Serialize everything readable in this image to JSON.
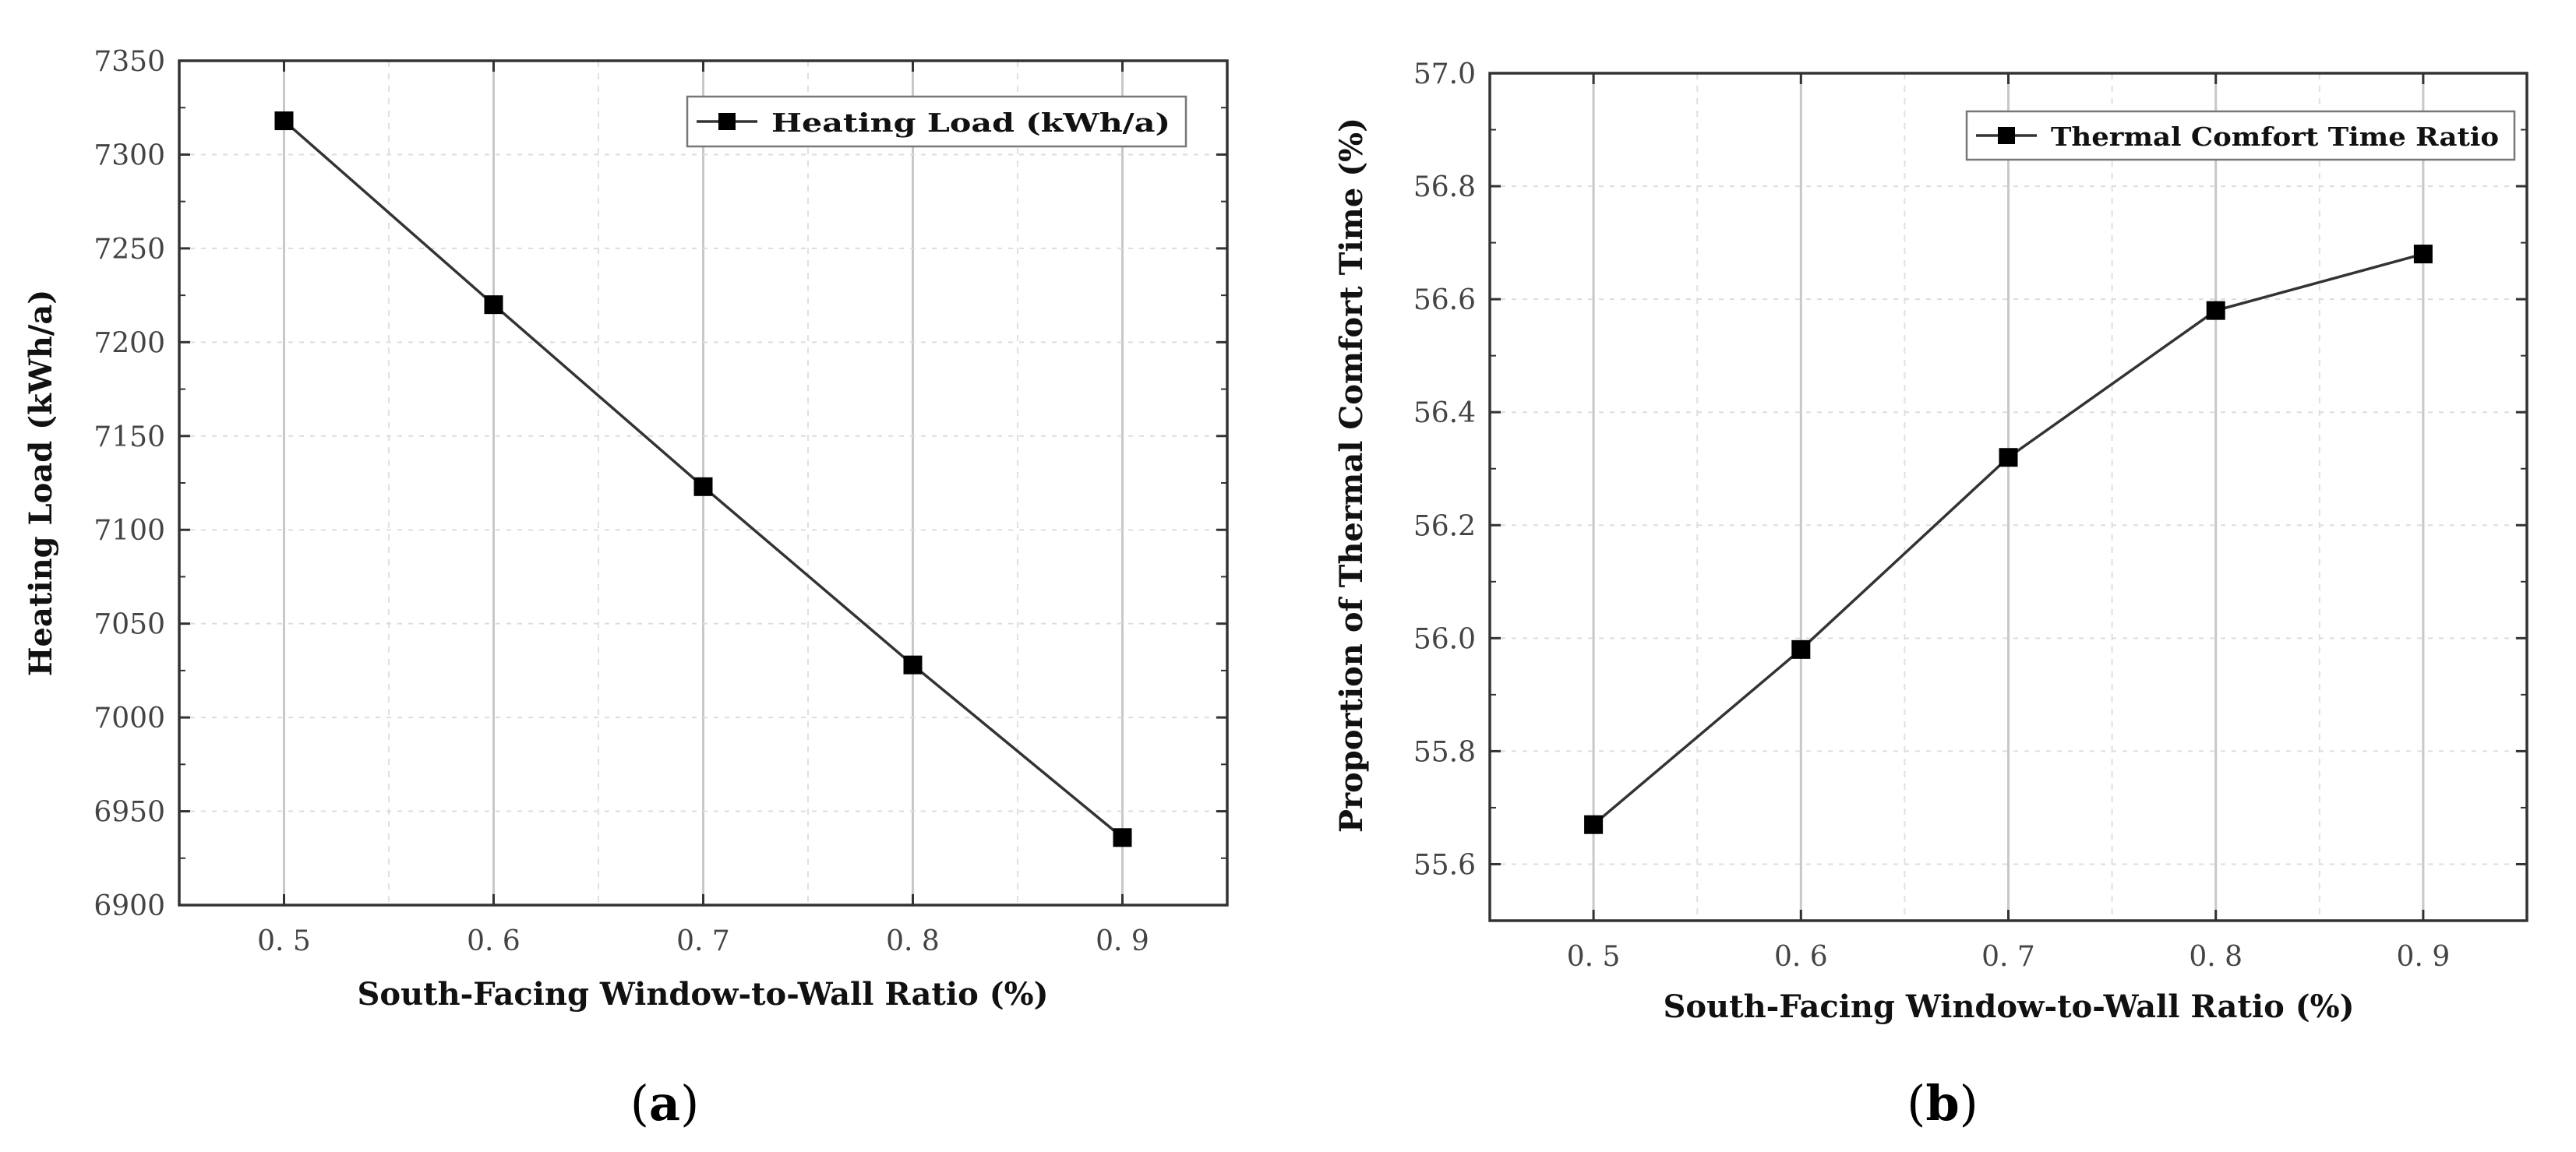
{
  "chart_data": [
    {
      "type": "line",
      "panel": "(a)",
      "panel_letter": "a",
      "title": "",
      "xlabel": "South-Facing Window-to-Wall Ratio (%)",
      "ylabel": "Heating Load (kWh/a)",
      "x": [
        0.5,
        0.6,
        0.7,
        0.8,
        0.9
      ],
      "xticks": [
        "0. 5",
        "0. 6",
        "0. 7",
        "0. 8",
        "0. 9"
      ],
      "xlim": [
        0.45,
        0.95
      ],
      "ylim": [
        6900,
        7350
      ],
      "yticks": [
        "6900",
        "6950",
        "7000",
        "7050",
        "7100",
        "7150",
        "7200",
        "7250",
        "7300",
        "7350"
      ],
      "series": [
        {
          "name": "Heating Load (kWh/a)",
          "values": [
            7318,
            7220,
            7123,
            7028,
            6936
          ]
        }
      ],
      "legend": "top-right",
      "grid": true,
      "color": "#333333"
    },
    {
      "type": "line",
      "panel": "(b)",
      "panel_letter": "b",
      "title": "",
      "xlabel": "South-Facing Window-to-Wall Ratio (%)",
      "ylabel": "Proportion of Thermal Comfort Time (%)",
      "x": [
        0.5,
        0.6,
        0.7,
        0.8,
        0.9
      ],
      "xticks": [
        "0. 5",
        "0. 6",
        "0. 7",
        "0. 8",
        "0. 9"
      ],
      "xlim": [
        0.45,
        0.95
      ],
      "ylim": [
        55.5,
        57.0
      ],
      "yticks": [
        "55.6",
        "55.8",
        "56.0",
        "56.2",
        "56.4",
        "56.6",
        "56.8",
        "57.0"
      ],
      "series": [
        {
          "name": "Thermal Comfort Time Ratio",
          "values": [
            55.67,
            55.98,
            56.32,
            56.58,
            56.68
          ]
        }
      ],
      "legend": "top-right",
      "grid": true,
      "color": "#333333"
    }
  ]
}
